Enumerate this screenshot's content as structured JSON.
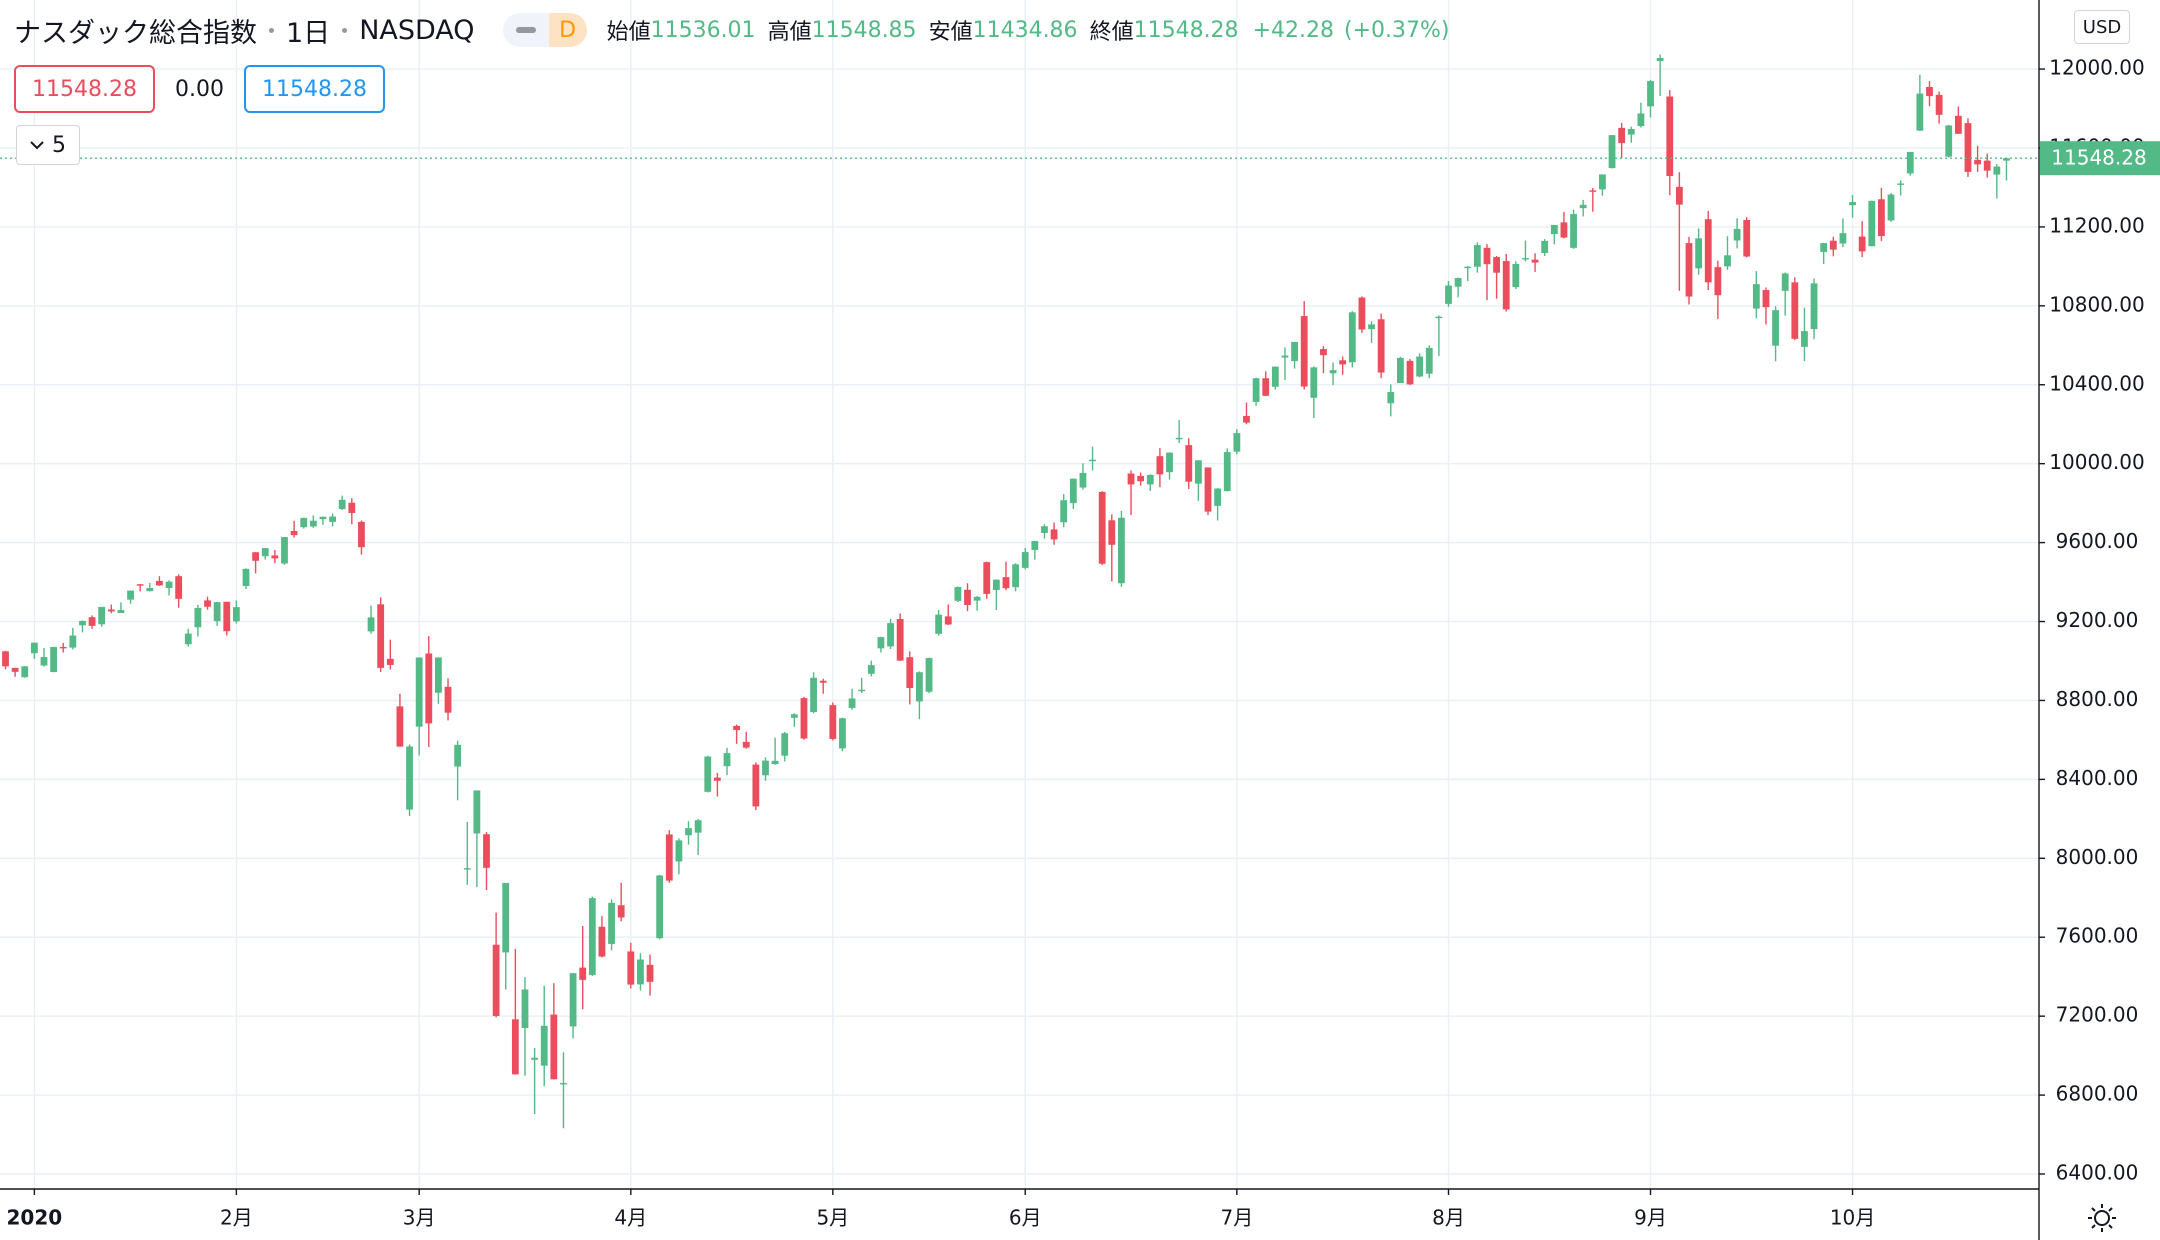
{
  "header": {
    "title": "ナスダック総合指数",
    "interval": "1日",
    "exchange": "NASDAQ",
    "badge": "D",
    "legend_labels": [
      "始値",
      "高値",
      "安値",
      "終値"
    ],
    "change": {
      "value": 42.28,
      "label": "+42.28"
    },
    "change_pct": {
      "value": 0.37,
      "label": "(+0.37%)"
    },
    "bid": 11548.28,
    "spread": {
      "value": 0,
      "label": "0.00"
    },
    "ask": 11548.28,
    "indicator_count": 5,
    "currency": "USD"
  },
  "chart_data": {
    "type": "candlestick",
    "up_color": "#53b987",
    "down_color": "#eb4d5c",
    "grid": true,
    "ylim": [
      6324,
      12350
    ],
    "yticks": [
      {
        "value": 6400,
        "label": "6400.00"
      },
      {
        "value": 6800,
        "label": "6800.00"
      },
      {
        "value": 7200,
        "label": "7200.00"
      },
      {
        "value": 7600,
        "label": "7600.00"
      },
      {
        "value": 8000,
        "label": "8000.00"
      },
      {
        "value": 8400,
        "label": "8400.00"
      },
      {
        "value": 8800,
        "label": "8800.00"
      },
      {
        "value": 9200,
        "label": "9200.00"
      },
      {
        "value": 9600,
        "label": "9600.00"
      },
      {
        "value": 10000,
        "label": "10000.00"
      },
      {
        "value": 10400,
        "label": "10400.00"
      },
      {
        "value": 10800,
        "label": "10800.00"
      },
      {
        "value": 11200,
        "label": "11200.00"
      },
      {
        "value": 11600,
        "label": "11600.00"
      },
      {
        "value": 12000,
        "label": "12000.00"
      }
    ],
    "xticks": [
      {
        "value": 3,
        "label": "2020"
      },
      {
        "value": 24,
        "label": "2月"
      },
      {
        "value": 43,
        "label": "3月"
      },
      {
        "value": 65,
        "label": "4月"
      },
      {
        "value": 86,
        "label": "5月"
      },
      {
        "value": 106,
        "label": "6月"
      },
      {
        "value": 128,
        "label": "7月"
      },
      {
        "value": 150,
        "label": "8月"
      },
      {
        "value": 171,
        "label": "9月"
      },
      {
        "value": 192,
        "label": "10月"
      }
    ],
    "candles": [
      [
        9049,
        9052,
        8958,
        8973
      ],
      [
        8965,
        8966,
        8920,
        8945
      ],
      [
        8918,
        8974,
        8915,
        8973
      ],
      [
        9039,
        9093,
        9011,
        9093
      ],
      [
        8977,
        9066,
        8972,
        9020
      ],
      [
        8944,
        9072,
        8943,
        9071
      ],
      [
        9071,
        9092,
        9043,
        9068
      ],
      [
        9068,
        9168,
        9059,
        9129
      ],
      [
        9181,
        9205,
        9145,
        9203
      ],
      [
        9222,
        9231,
        9163,
        9178
      ],
      [
        9186,
        9274,
        9174,
        9274
      ],
      [
        9261,
        9286,
        9242,
        9251
      ],
      [
        9243,
        9297,
        9243,
        9258
      ],
      [
        9311,
        9357,
        9290,
        9357
      ],
      [
        9389,
        9390,
        9353,
        9388
      ],
      [
        9354,
        9396,
        9352,
        9370
      ],
      [
        9406,
        9430,
        9381,
        9383
      ],
      [
        9370,
        9409,
        9332,
        9402
      ],
      [
        9430,
        9439,
        9270,
        9315
      ],
      [
        9085,
        9163,
        9073,
        9139
      ],
      [
        9171,
        9284,
        9124,
        9269
      ],
      [
        9307,
        9326,
        9260,
        9275
      ],
      [
        9202,
        9300,
        9178,
        9298
      ],
      [
        9300,
        9300,
        9129,
        9151
      ],
      [
        9201,
        9307,
        9190,
        9273
      ],
      [
        9380,
        9469,
        9365,
        9467
      ],
      [
        9551,
        9552,
        9444,
        9508
      ],
      [
        9531,
        9572,
        9514,
        9572
      ],
      [
        9535,
        9563,
        9496,
        9520
      ],
      [
        9494,
        9628,
        9488,
        9628
      ],
      [
        9659,
        9710,
        9626,
        9638
      ],
      [
        9678,
        9727,
        9671,
        9725
      ],
      [
        9682,
        9738,
        9675,
        9711
      ],
      [
        9719,
        9732,
        9690,
        9731
      ],
      [
        9705,
        9747,
        9682,
        9732
      ],
      [
        9770,
        9838,
        9765,
        9817
      ],
      [
        9802,
        9825,
        9693,
        9750
      ],
      [
        9705,
        9712,
        9539,
        9577
      ],
      [
        9150,
        9281,
        9138,
        9221
      ],
      [
        9287,
        9322,
        8944,
        8965
      ],
      [
        9011,
        9108,
        8957,
        8980
      ],
      [
        8770,
        8834,
        8566,
        8566
      ],
      [
        8247,
        8577,
        8214,
        8567
      ],
      [
        8667,
        9018,
        8521,
        9018
      ],
      [
        9038,
        9126,
        8564,
        8684
      ],
      [
        8839,
        9018,
        8783,
        9018
      ],
      [
        8869,
        8912,
        8699,
        8738
      ],
      [
        8465,
        8596,
        8294,
        8575
      ],
      [
        7949,
        8184,
        7866,
        7950
      ],
      [
        8126,
        8344,
        7854,
        8344
      ],
      [
        8122,
        8133,
        7839,
        7952
      ],
      [
        7562,
        7725,
        7194,
        7201
      ],
      [
        7523,
        7875,
        7335,
        7875
      ],
      [
        7184,
        7541,
        6904,
        6905
      ],
      [
        7140,
        7398,
        6898,
        7335
      ],
      [
        6979,
        7039,
        6704,
        6989
      ],
      [
        6949,
        7354,
        6845,
        7151
      ],
      [
        7208,
        7367,
        6879,
        6880
      ],
      [
        6859,
        7017,
        6632,
        6861
      ],
      [
        7148,
        7418,
        7087,
        7418
      ],
      [
        7446,
        7657,
        7235,
        7384
      ],
      [
        7409,
        7806,
        7403,
        7798
      ],
      [
        7653,
        7707,
        7497,
        7502
      ],
      [
        7566,
        7792,
        7534,
        7774
      ],
      [
        7762,
        7877,
        7681,
        7700
      ],
      [
        7528,
        7571,
        7340,
        7360
      ],
      [
        7361,
        7519,
        7330,
        7487
      ],
      [
        7460,
        7512,
        7304,
        7374
      ],
      [
        7595,
        7917,
        7589,
        7913
      ],
      [
        8121,
        8143,
        7876,
        7887
      ],
      [
        7984,
        8101,
        7919,
        8091
      ],
      [
        8117,
        8188,
        8070,
        8153
      ],
      [
        8130,
        8199,
        8017,
        8193
      ],
      [
        8337,
        8520,
        8334,
        8516
      ],
      [
        8409,
        8433,
        8313,
        8393
      ],
      [
        8467,
        8560,
        8422,
        8533
      ],
      [
        8671,
        8678,
        8580,
        8650
      ],
      [
        8590,
        8641,
        8555,
        8561
      ],
      [
        8475,
        8486,
        8244,
        8263
      ],
      [
        8421,
        8512,
        8393,
        8495
      ],
      [
        8478,
        8611,
        8474,
        8494
      ],
      [
        8520,
        8640,
        8491,
        8634
      ],
      [
        8712,
        8735,
        8667,
        8730
      ],
      [
        8812,
        8818,
        8601,
        8607
      ],
      [
        8741,
        8943,
        8734,
        8915
      ],
      [
        8900,
        8910,
        8834,
        8890
      ],
      [
        8776,
        8790,
        8597,
        8605
      ],
      [
        8557,
        8713,
        8543,
        8710
      ],
      [
        8762,
        8859,
        8753,
        8810
      ],
      [
        8851,
        8915,
        8837,
        8854
      ],
      [
        8935,
        9002,
        8922,
        8979
      ],
      [
        9064,
        9123,
        9043,
        9121
      ],
      [
        9074,
        9214,
        9061,
        9192
      ],
      [
        9213,
        9241,
        9000,
        9002
      ],
      [
        9019,
        9049,
        8780,
        8863
      ],
      [
        8795,
        8947,
        8705,
        8943
      ],
      [
        8844,
        9017,
        8837,
        9015
      ],
      [
        9138,
        9258,
        9129,
        9235
      ],
      [
        9226,
        9287,
        9182,
        9185
      ],
      [
        9305,
        9378,
        9299,
        9375
      ],
      [
        9361,
        9394,
        9253,
        9284
      ],
      [
        9306,
        9329,
        9255,
        9325
      ],
      [
        9501,
        9504,
        9315,
        9340
      ],
      [
        9360,
        9414,
        9258,
        9412
      ],
      [
        9425,
        9503,
        9359,
        9369
      ],
      [
        9374,
        9496,
        9353,
        9490
      ],
      [
        9472,
        9573,
        9464,
        9552
      ],
      [
        9563,
        9608,
        9514,
        9608
      ],
      [
        9649,
        9693,
        9620,
        9683
      ],
      [
        9667,
        9702,
        9589,
        9616
      ],
      [
        9703,
        9846,
        9678,
        9815
      ],
      [
        9800,
        9925,
        9770,
        9924
      ],
      [
        9879,
        10002,
        9869,
        9953
      ],
      [
        10013,
        10086,
        9966,
        10020
      ],
      [
        9857,
        9861,
        9486,
        9493
      ],
      [
        9713,
        9743,
        9403,
        9589
      ],
      [
        9394,
        9761,
        9376,
        9726
      ],
      [
        9950,
        9966,
        9740,
        9895
      ],
      [
        9938,
        9955,
        9889,
        9911
      ],
      [
        9895,
        9946,
        9862,
        9943
      ],
      [
        10038,
        10079,
        9881,
        9946
      ],
      [
        9957,
        10057,
        9919,
        10056
      ],
      [
        10131,
        10221,
        10105,
        10131
      ],
      [
        10094,
        10129,
        9872,
        9909
      ],
      [
        9899,
        10018,
        9811,
        10017
      ],
      [
        9981,
        9981,
        9740,
        9757
      ],
      [
        9786,
        9876,
        9712,
        9874
      ],
      [
        9861,
        10078,
        9860,
        10059
      ],
      [
        10061,
        10175,
        10048,
        10155
      ],
      [
        10242,
        10310,
        10200,
        10208
      ],
      [
        10313,
        10436,
        10293,
        10433
      ],
      [
        10433,
        10468,
        10343,
        10344
      ],
      [
        10390,
        10493,
        10376,
        10492
      ],
      [
        10538,
        10589,
        10424,
        10548
      ],
      [
        10520,
        10617,
        10482,
        10617
      ],
      [
        10748,
        10824,
        10376,
        10391
      ],
      [
        10334,
        10493,
        10232,
        10488
      ],
      [
        10581,
        10596,
        10459,
        10550
      ],
      [
        10458,
        10513,
        10398,
        10474
      ],
      [
        10524,
        10543,
        10451,
        10503
      ],
      [
        10514,
        10773,
        10488,
        10767
      ],
      [
        10842,
        10848,
        10663,
        10680
      ],
      [
        10682,
        10722,
        10612,
        10706
      ],
      [
        10732,
        10761,
        10433,
        10462
      ],
      [
        10306,
        10402,
        10240,
        10363
      ],
      [
        10409,
        10542,
        10409,
        10536
      ],
      [
        10521,
        10530,
        10399,
        10402
      ],
      [
        10442,
        10559,
        10438,
        10543
      ],
      [
        10456,
        10600,
        10433,
        10587
      ],
      [
        10744,
        10751,
        10546,
        10745
      ],
      [
        10810,
        10926,
        10795,
        10903
      ],
      [
        10897,
        10943,
        10843,
        10941
      ],
      [
        10994,
        11002,
        10925,
        10998
      ],
      [
        10998,
        11122,
        10968,
        11108
      ],
      [
        11094,
        11113,
        10829,
        11011
      ],
      [
        11047,
        11053,
        10836,
        10968
      ],
      [
        11027,
        11063,
        10771,
        10782
      ],
      [
        10895,
        11026,
        10885,
        11012
      ],
      [
        11039,
        11131,
        11025,
        11042
      ],
      [
        11034,
        11066,
        10972,
        11019
      ],
      [
        11068,
        11138,
        11053,
        11129
      ],
      [
        11164,
        11210,
        11112,
        11210
      ],
      [
        11223,
        11276,
        11142,
        11146
      ],
      [
        11094,
        11288,
        11089,
        11265
      ],
      [
        11295,
        11337,
        11253,
        11312
      ],
      [
        11385,
        11397,
        11277,
        11380
      ],
      [
        11390,
        11466,
        11358,
        11466
      ],
      [
        11498,
        11666,
        11496,
        11665
      ],
      [
        11702,
        11727,
        11550,
        11625
      ],
      [
        11668,
        11708,
        11627,
        11696
      ],
      [
        11711,
        11829,
        11704,
        11775
      ],
      [
        11811,
        11945,
        11755,
        11939
      ],
      [
        12041,
        12074,
        11863,
        12056
      ],
      [
        11861,
        11894,
        11361,
        11458
      ],
      [
        11403,
        11477,
        10876,
        11313
      ],
      [
        11118,
        11149,
        10807,
        10847
      ],
      [
        10990,
        11193,
        10958,
        11142
      ],
      [
        11239,
        11281,
        10880,
        10919
      ],
      [
        10996,
        11029,
        10734,
        10854
      ],
      [
        11000,
        11153,
        10983,
        11056
      ],
      [
        11131,
        11244,
        11091,
        11190
      ],
      [
        11235,
        11249,
        11045,
        11050
      ],
      [
        10786,
        10976,
        10737,
        10910
      ],
      [
        10880,
        10893,
        10705,
        10793
      ],
      [
        10598,
        10798,
        10519,
        10778
      ],
      [
        10876,
        10969,
        10750,
        10964
      ],
      [
        10919,
        10945,
        10626,
        10633
      ],
      [
        10592,
        10791,
        10520,
        10672
      ],
      [
        10682,
        10939,
        10631,
        10914
      ],
      [
        11073,
        11118,
        11012,
        11118
      ],
      [
        11130,
        11150,
        11051,
        11085
      ],
      [
        11116,
        11243,
        11098,
        11168
      ],
      [
        11310,
        11361,
        11247,
        11326
      ],
      [
        11151,
        11229,
        11047,
        11076
      ],
      [
        11102,
        11333,
        11102,
        11332
      ],
      [
        11340,
        11398,
        11129,
        11154
      ],
      [
        11233,
        11372,
        11226,
        11364
      ],
      [
        11419,
        11436,
        11359,
        11420
      ],
      [
        11471,
        11580,
        11460,
        11580
      ],
      [
        11688,
        11971,
        11686,
        11876
      ],
      [
        11909,
        11939,
        11812,
        11863
      ],
      [
        11869,
        11886,
        11723,
        11768
      ],
      [
        11556,
        11717,
        11552,
        11714
      ],
      [
        11763,
        11810,
        11671,
        11672
      ],
      [
        11726,
        11751,
        11453,
        11479
      ],
      [
        11540,
        11611,
        11479,
        11517
      ],
      [
        11536,
        11572,
        11450,
        11485
      ],
      [
        11465,
        11519,
        11344,
        11506
      ],
      [
        11536.01,
        11548.85,
        11434.86,
        11548.28
      ]
    ]
  }
}
